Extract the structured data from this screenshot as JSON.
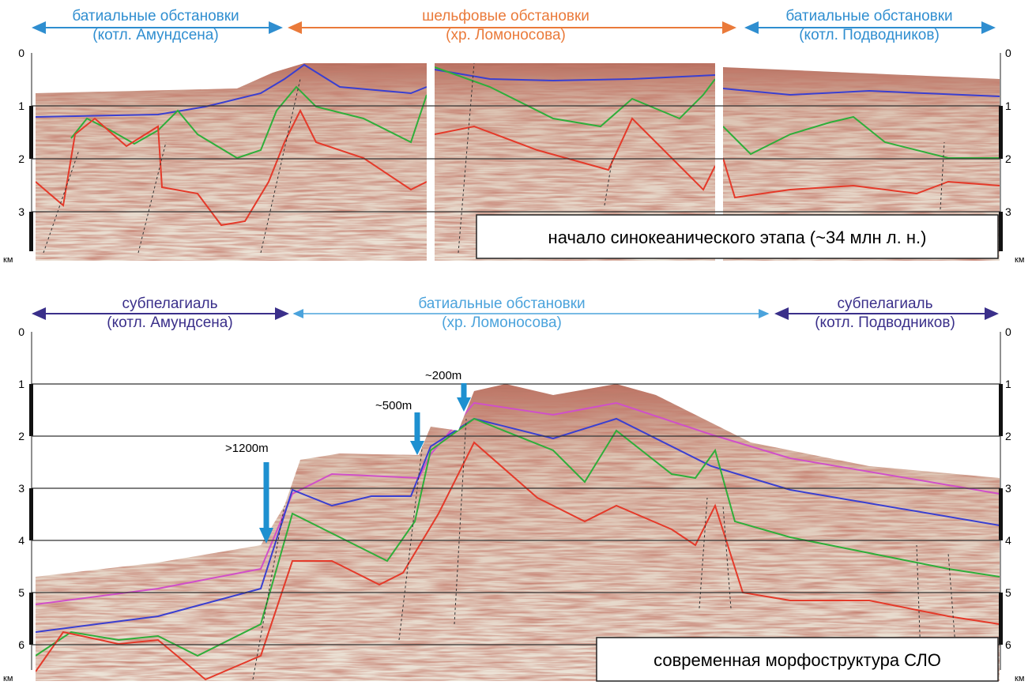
{
  "panels": [
    {
      "headers": [
        {
          "title": "батиальные обстановки",
          "subtitle": "(котл. Амундсена)"
        },
        {
          "title": "шельфовые обстановки",
          "subtitle": "(хр. Ломоносова)"
        },
        {
          "title": "батиальные обстановки",
          "subtitle": "(котл. Подводников)"
        }
      ],
      "depth_ticks": [
        0,
        1,
        2,
        3
      ],
      "depth_unit": "км",
      "caption": "начало синокеанического этапа (~34 млн л. н.)"
    },
    {
      "headers": [
        {
          "title": "субпелагиаль",
          "subtitle": "(котл. Амундсена)"
        },
        {
          "title": "батиальные обстановки",
          "subtitle": "(хр. Ломоносова)"
        },
        {
          "title": "субпелагиаль",
          "subtitle": "(котл. Подводников)"
        }
      ],
      "depth_ticks": [
        0,
        1,
        2,
        3,
        4,
        5,
        6
      ],
      "depth_unit": "км",
      "annotations": [
        ">1200m",
        "~500m",
        "~200m"
      ],
      "caption": "современная морфоструктура СЛО"
    }
  ]
}
